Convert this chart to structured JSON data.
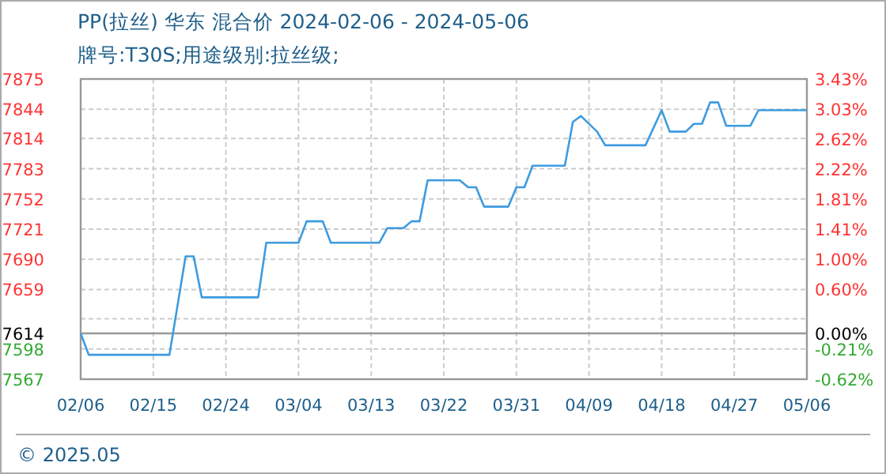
{
  "chart_data": {
    "type": "line",
    "title": "PP(拉丝) 华东 混合价 2024-02-06 - 2024-05-06",
    "subtitle": "牌号:T30S;用途级别:拉丝级;",
    "annotations": [
      "© 2025.05"
    ],
    "xlim": [
      "2024-02-06",
      "2024-05-06"
    ],
    "xticks": [
      {
        "value": "2024-02-06",
        "label": "02/06"
      },
      {
        "value": "2024-02-15",
        "label": "02/15"
      },
      {
        "value": "2024-02-24",
        "label": "02/24"
      },
      {
        "value": "2024-03-04",
        "label": "03/04"
      },
      {
        "value": "2024-03-13",
        "label": "03/13"
      },
      {
        "value": "2024-03-22",
        "label": "03/22"
      },
      {
        "value": "2024-03-31",
        "label": "03/31"
      },
      {
        "value": "2024-04-09",
        "label": "04/09"
      },
      {
        "value": "2024-04-18",
        "label": "04/18"
      },
      {
        "value": "2024-04-27",
        "label": "04/27"
      },
      {
        "value": "2024-05-06",
        "label": "05/06"
      }
    ],
    "ylim": [
      7567,
      7875
    ],
    "yticks": [
      7567,
      7598,
      7614,
      {
        "value": 7629,
        "label": null
      },
      7659,
      7690,
      7721,
      7752,
      7783,
      7814,
      7844,
      7875
    ],
    "y2lim": [
      -0.62,
      3.43
    ],
    "y2ticks": [
      {
        "value": -0.62,
        "label": "-0.62%"
      },
      {
        "value": -0.21,
        "label": "-0.21%"
      },
      {
        "value": 0,
        "label": "0.00%"
      },
      {
        "value": 0.6,
        "label": "0.60%"
      },
      {
        "value": 1.0,
        "label": "1.00%"
      },
      {
        "value": 1.41,
        "label": "1.41%"
      },
      {
        "value": 1.81,
        "label": "1.81%"
      },
      {
        "value": 2.22,
        "label": "2.22%"
      },
      {
        "value": 2.62,
        "label": "2.62%"
      },
      {
        "value": 3.03,
        "label": "3.03%"
      },
      {
        "value": 3.43,
        "label": "3.43%"
      }
    ],
    "grid": true,
    "ref_lines": [
      {
        "axis": "y",
        "value": 7614,
        "color": "#999999"
      }
    ],
    "color": "#3d9be0",
    "x": [
      "2024-02-06",
      "2024-02-07",
      "2024-02-17",
      "2024-02-19",
      "2024-02-20",
      "2024-02-21",
      "2024-02-28",
      "2024-02-29",
      "2024-03-04",
      "2024-03-05",
      "2024-03-07",
      "2024-03-08",
      "2024-03-14",
      "2024-03-15",
      "2024-03-17",
      "2024-03-18",
      "2024-03-19",
      "2024-03-20",
      "2024-03-24",
      "2024-03-25",
      "2024-03-26",
      "2024-03-27",
      "2024-03-30",
      "2024-03-31",
      "2024-04-01",
      "2024-04-02",
      "2024-04-06",
      "2024-04-07",
      "2024-04-08",
      "2024-04-10",
      "2024-04-11",
      "2024-04-16",
      "2024-04-18",
      "2024-04-19",
      "2024-04-21",
      "2024-04-22",
      "2024-04-23",
      "2024-04-24",
      "2024-04-25",
      "2024-04-26",
      "2024-04-29",
      "2024-04-30",
      "2024-05-06"
    ],
    "values": [
      7614,
      7592,
      7592,
      7693,
      7693,
      7651,
      7651,
      7707,
      7707,
      7729,
      7729,
      7707,
      7707,
      7722,
      7722,
      7729,
      7729,
      7771,
      7771,
      7764,
      7764,
      7744,
      7744,
      7764,
      7764,
      7786,
      7786,
      7831,
      7837,
      7821,
      7807,
      7807,
      7843,
      7821,
      7821,
      7829,
      7829,
      7851,
      7851,
      7827,
      7827,
      7843,
      7843
    ]
  }
}
